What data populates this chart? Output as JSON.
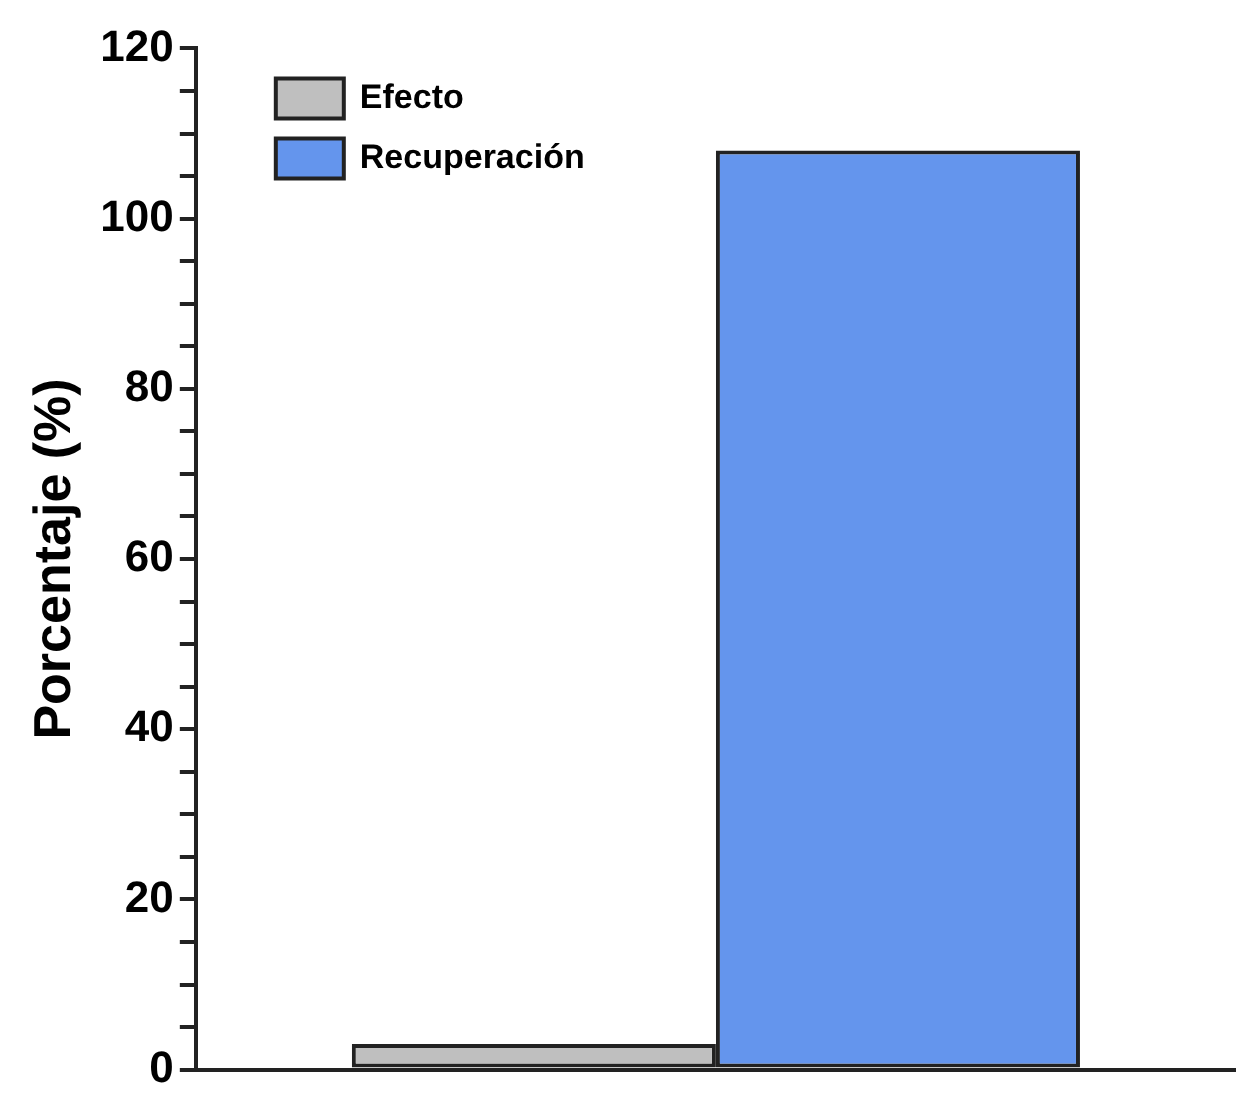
{
  "chart_data": {
    "type": "bar",
    "ylabel": "Porcentaje (%)",
    "categories": [
      null
    ],
    "series": [
      {
        "name": "Efecto",
        "color": "#bfbfbf",
        "values": [
          3
        ]
      },
      {
        "name": "Recuperación",
        "color": "#6495ed",
        "values": [
          108
        ]
      }
    ],
    "ylim": [
      0,
      120
    ],
    "yticks": [
      0,
      {
        "value": 5,
        "label": null
      },
      {
        "value": 10,
        "label": null
      },
      {
        "value": 15,
        "label": null
      },
      20,
      {
        "value": 25,
        "label": null
      },
      {
        "value": 30,
        "label": null
      },
      {
        "value": 35,
        "label": null
      },
      40,
      {
        "value": 45,
        "label": null
      },
      {
        "value": 50,
        "label": null
      },
      {
        "value": 55,
        "label": null
      },
      60,
      {
        "value": 65,
        "label": null
      },
      {
        "value": 70,
        "label": null
      },
      {
        "value": 75,
        "label": null
      },
      80,
      {
        "value": 85,
        "label": null
      },
      {
        "value": 90,
        "label": null
      },
      {
        "value": 95,
        "label": null
      },
      100,
      {
        "value": 105,
        "label": null
      },
      {
        "value": 110,
        "label": null
      },
      {
        "value": 115,
        "label": null
      },
      120
    ],
    "grid": false,
    "legend": "top left",
    "tick_labels": "y"
  }
}
